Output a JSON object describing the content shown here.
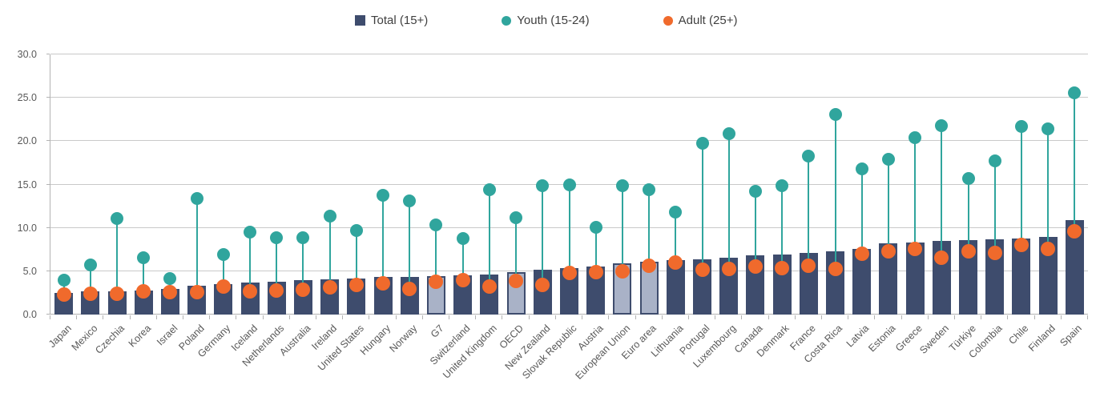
{
  "legend": [
    {
      "label": "Total (15+)",
      "marker": "square",
      "color": "#3e4c6d"
    },
    {
      "label": "Youth (15-24)",
      "marker": "circle",
      "color": "#30a59d"
    },
    {
      "label": "Adult (25+)",
      "marker": "circle",
      "color": "#f06a2c"
    }
  ],
  "chart_data": {
    "type": "bar",
    "subtype": "bars with youth/adult point markers (lollipop overlay)",
    "categories": [
      "Japan",
      "Mexico",
      "Czechia",
      "Korea",
      "Israel",
      "Poland",
      "Germany",
      "Iceland",
      "Netherlands",
      "Australia",
      "Ireland",
      "United States",
      "Hungary",
      "Norway",
      "G7",
      "Switzerland",
      "United Kingdom",
      "OECD",
      "New Zealand",
      "Slovak Republic",
      "Austria",
      "European Union",
      "Euro area",
      "Lithuania",
      "Portugal",
      "Luxembourg",
      "Canada",
      "Denmark",
      "France",
      "Costa Rica",
      "Latvia",
      "Estonia",
      "Greece",
      "Sweden",
      "Türkiye",
      "Colombia",
      "Chile",
      "Finland",
      "Spain"
    ],
    "series": [
      {
        "name": "Total (15+)",
        "type": "bar",
        "color": "#3e4c6d",
        "values": [
          2.5,
          2.7,
          2.7,
          2.8,
          3.0,
          3.3,
          3.5,
          3.7,
          3.8,
          4.0,
          4.1,
          4.2,
          4.3,
          4.3,
          4.4,
          4.5,
          4.6,
          4.9,
          5.2,
          5.4,
          5.5,
          5.9,
          6.1,
          6.3,
          6.4,
          6.6,
          6.8,
          6.9,
          7.1,
          7.3,
          7.6,
          8.2,
          8.3,
          8.5,
          8.6,
          8.7,
          8.8,
          9.0,
          10.9
        ]
      },
      {
        "name": "Youth (15-24)",
        "type": "point",
        "color": "#30a59d",
        "values": [
          4.0,
          5.7,
          11.1,
          6.6,
          4.2,
          13.4,
          6.9,
          9.5,
          8.9,
          8.9,
          11.4,
          9.7,
          13.8,
          13.1,
          10.3,
          8.8,
          14.4,
          11.2,
          14.9,
          15.0,
          10.1,
          14.9,
          14.4,
          11.8,
          19.8,
          20.9,
          14.2,
          14.9,
          18.3,
          23.1,
          16.8,
          17.9,
          20.4,
          21.8,
          15.7,
          17.7,
          21.7,
          21.4,
          25.6
        ]
      },
      {
        "name": "Adult (25+)",
        "type": "point",
        "color": "#f06a2c",
        "values": [
          2.3,
          2.4,
          2.4,
          2.7,
          2.6,
          2.6,
          3.2,
          2.7,
          2.8,
          2.9,
          3.1,
          3.4,
          3.6,
          3.0,
          3.8,
          4.0,
          3.2,
          3.9,
          3.4,
          4.8,
          4.9,
          5.0,
          5.6,
          6.0,
          5.2,
          5.3,
          5.5,
          5.4,
          5.6,
          5.3,
          7.0,
          7.3,
          7.6,
          6.6,
          7.3,
          7.1,
          8.0,
          7.6,
          9.6
        ]
      }
    ],
    "aggregate_categories": [
      "G7",
      "OECD",
      "European Union",
      "Euro area"
    ],
    "aggregate_bar_fill": "#a9b2c7",
    "ylim": [
      0,
      30
    ],
    "ytick_step": 5,
    "ytick_labels": [
      "0.0",
      "5.0",
      "10.0",
      "15.0",
      "20.0",
      "25.0",
      "30.0"
    ],
    "grid": true,
    "grid_color": "#c9c9c9",
    "legend_position": "top",
    "x_label_rotation_deg": -45
  }
}
